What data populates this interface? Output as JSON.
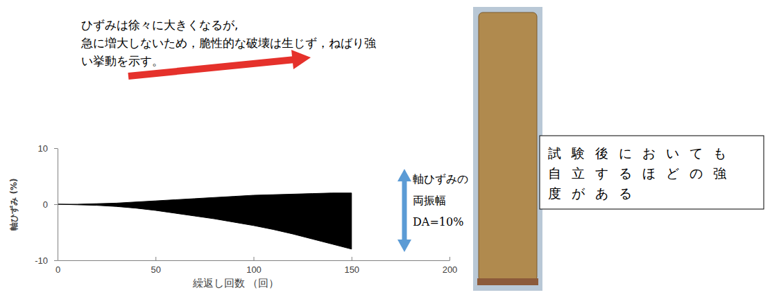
{
  "chart_data": {
    "type": "area",
    "annotations": [
      {
        "text": [
          "ひずみは徐々に大きくなるが,",
          "急に増大しないため，脆性的な破壊は生じず，ねばり強",
          "い挙動を示す。"
        ]
      },
      {
        "text": [
          "軸ひずみの",
          "両振幅",
          "DA=10%"
        ]
      },
      {
        "text": [
          "試験後においても",
          "自立するほどの強",
          "度がある"
        ]
      }
    ],
    "x_label": "繰返し回数 （回）",
    "y_label": "軸ひずみ (%)",
    "x": [
      0,
      10,
      20,
      30,
      40,
      50,
      60,
      70,
      80,
      90,
      100,
      110,
      120,
      130,
      140,
      150
    ],
    "series": [
      {
        "color": "#000000",
        "values": [
          0,
          0,
          0.1,
          0.2,
          0.4,
          0.6,
          0.8,
          1.0,
          1.2,
          1.4,
          1.6,
          1.7,
          1.8,
          1.9,
          2.0,
          2.0
        ]
      },
      {
        "color": "#000000",
        "values": [
          0,
          -0.1,
          -0.2,
          -0.4,
          -0.7,
          -1.1,
          -1.6,
          -2.1,
          -2.6,
          -3.2,
          -3.8,
          -4.5,
          -5.3,
          -6.2,
          -7.1,
          -8.0
        ]
      }
    ],
    "xlim": [
      0,
      200
    ],
    "xticks": [
      0,
      50,
      100,
      150,
      200
    ],
    "ylim": [
      -10,
      10
    ],
    "yticks": [
      -10,
      0,
      10
    ],
    "grid": false
  }
}
